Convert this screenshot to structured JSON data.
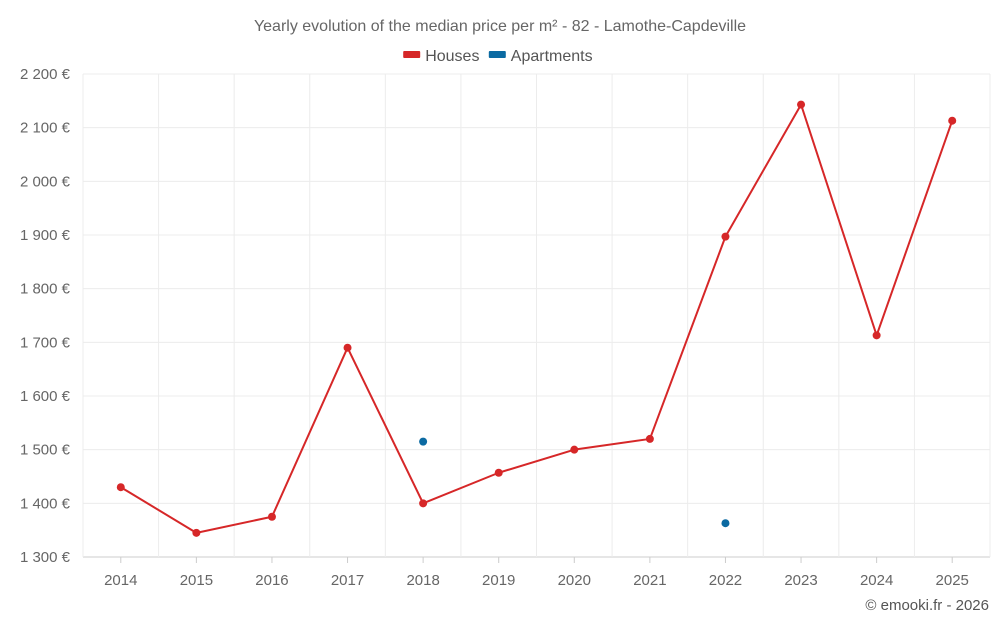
{
  "chart_data": {
    "type": "line",
    "title": "Yearly evolution of the median price per m² - 82 - Lamothe-Capdeville",
    "categories": [
      "2014",
      "2015",
      "2016",
      "2017",
      "2018",
      "2019",
      "2020",
      "2021",
      "2022",
      "2023",
      "2024",
      "2025"
    ],
    "series": [
      {
        "name": "Houses",
        "color": "#d62728",
        "show_line": true,
        "values": [
          1430,
          1345,
          1375,
          1690,
          1400,
          1457,
          1500,
          1520,
          1897,
          2143,
          1713,
          2113
        ]
      },
      {
        "name": "Apartments",
        "color": "#0b6aa2",
        "show_line": false,
        "values": [
          null,
          null,
          null,
          null,
          1515,
          null,
          null,
          null,
          1363,
          null,
          null,
          null
        ]
      }
    ],
    "y_ticks": [
      1300,
      1400,
      1500,
      1600,
      1700,
      1800,
      1900,
      2000,
      2100,
      2200
    ],
    "y_tick_labels": [
      "1 300 €",
      "1 400 €",
      "1 500 €",
      "1 600 €",
      "1 700 €",
      "1 800 €",
      "1 900 €",
      "2 000 €",
      "2 100 €",
      "2 200 €"
    ],
    "ylim": [
      1300,
      2200
    ],
    "xlabel": "",
    "ylabel": "",
    "grid": true,
    "legend_position": "top-center"
  },
  "credit": "© emooki.fr - 2026"
}
